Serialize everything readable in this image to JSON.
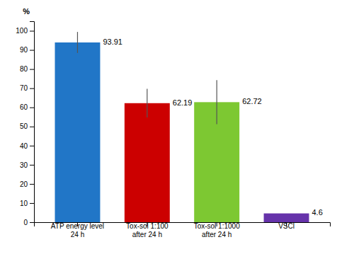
{
  "chart_data": {
    "type": "bar",
    "categories": [
      "ATP energy level\n24 h",
      "Tox-sol 1:100\nafter 24 h",
      "Tox-sol 1:1000\nafter 24 h",
      "VSCl"
    ],
    "values": [
      93.91,
      62.19,
      62.72,
      4.6
    ],
    "errors": [
      5.5,
      7.5,
      11.5,
      0
    ],
    "colors": [
      "#2176c7",
      "#cc0000",
      "#7dc832",
      "#6633aa"
    ],
    "ylabel": "%",
    "ylim": [
      0,
      105
    ],
    "yticks": [
      0,
      10,
      20,
      30,
      40,
      50,
      60,
      70,
      80,
      90,
      100
    ],
    "data_labels": true,
    "grid": false
  }
}
